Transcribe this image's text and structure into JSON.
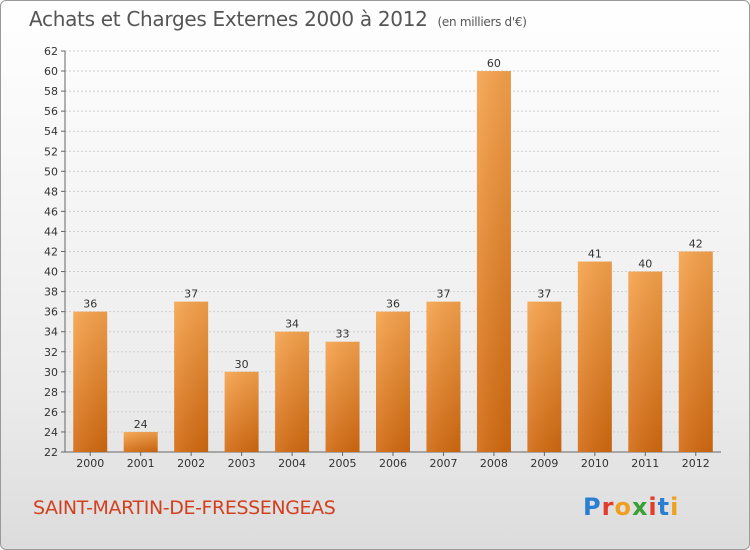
{
  "header": {
    "title": "Achats et Charges Externes 2000 à 2012",
    "unit": "(en milliers d'€)"
  },
  "footer": {
    "commune": "SAINT-MARTIN-DE-FRESSENGEAS",
    "logo": "Proxiti"
  },
  "colors": {
    "bar_light": "#f7a24a",
    "bar_dark": "#d46a10",
    "commune": "#d1401f",
    "grid": "#cccccc"
  },
  "chart_data": {
    "type": "bar",
    "title": "Achats et Charges Externes 2000 à 2012",
    "subtitle": "(en milliers d'€)",
    "categories": [
      "2000",
      "2001",
      "2002",
      "2003",
      "2004",
      "2005",
      "2006",
      "2007",
      "2008",
      "2009",
      "2010",
      "2011",
      "2012"
    ],
    "values": [
      36,
      24,
      37,
      30,
      34,
      33,
      36,
      37,
      60,
      37,
      41,
      40,
      42
    ],
    "ylim": [
      22,
      62
    ],
    "yticks": [
      22,
      24,
      26,
      28,
      30,
      32,
      34,
      36,
      38,
      40,
      42,
      44,
      46,
      48,
      50,
      52,
      54,
      56,
      58,
      60,
      62
    ],
    "grid": true,
    "data_labels": true
  }
}
